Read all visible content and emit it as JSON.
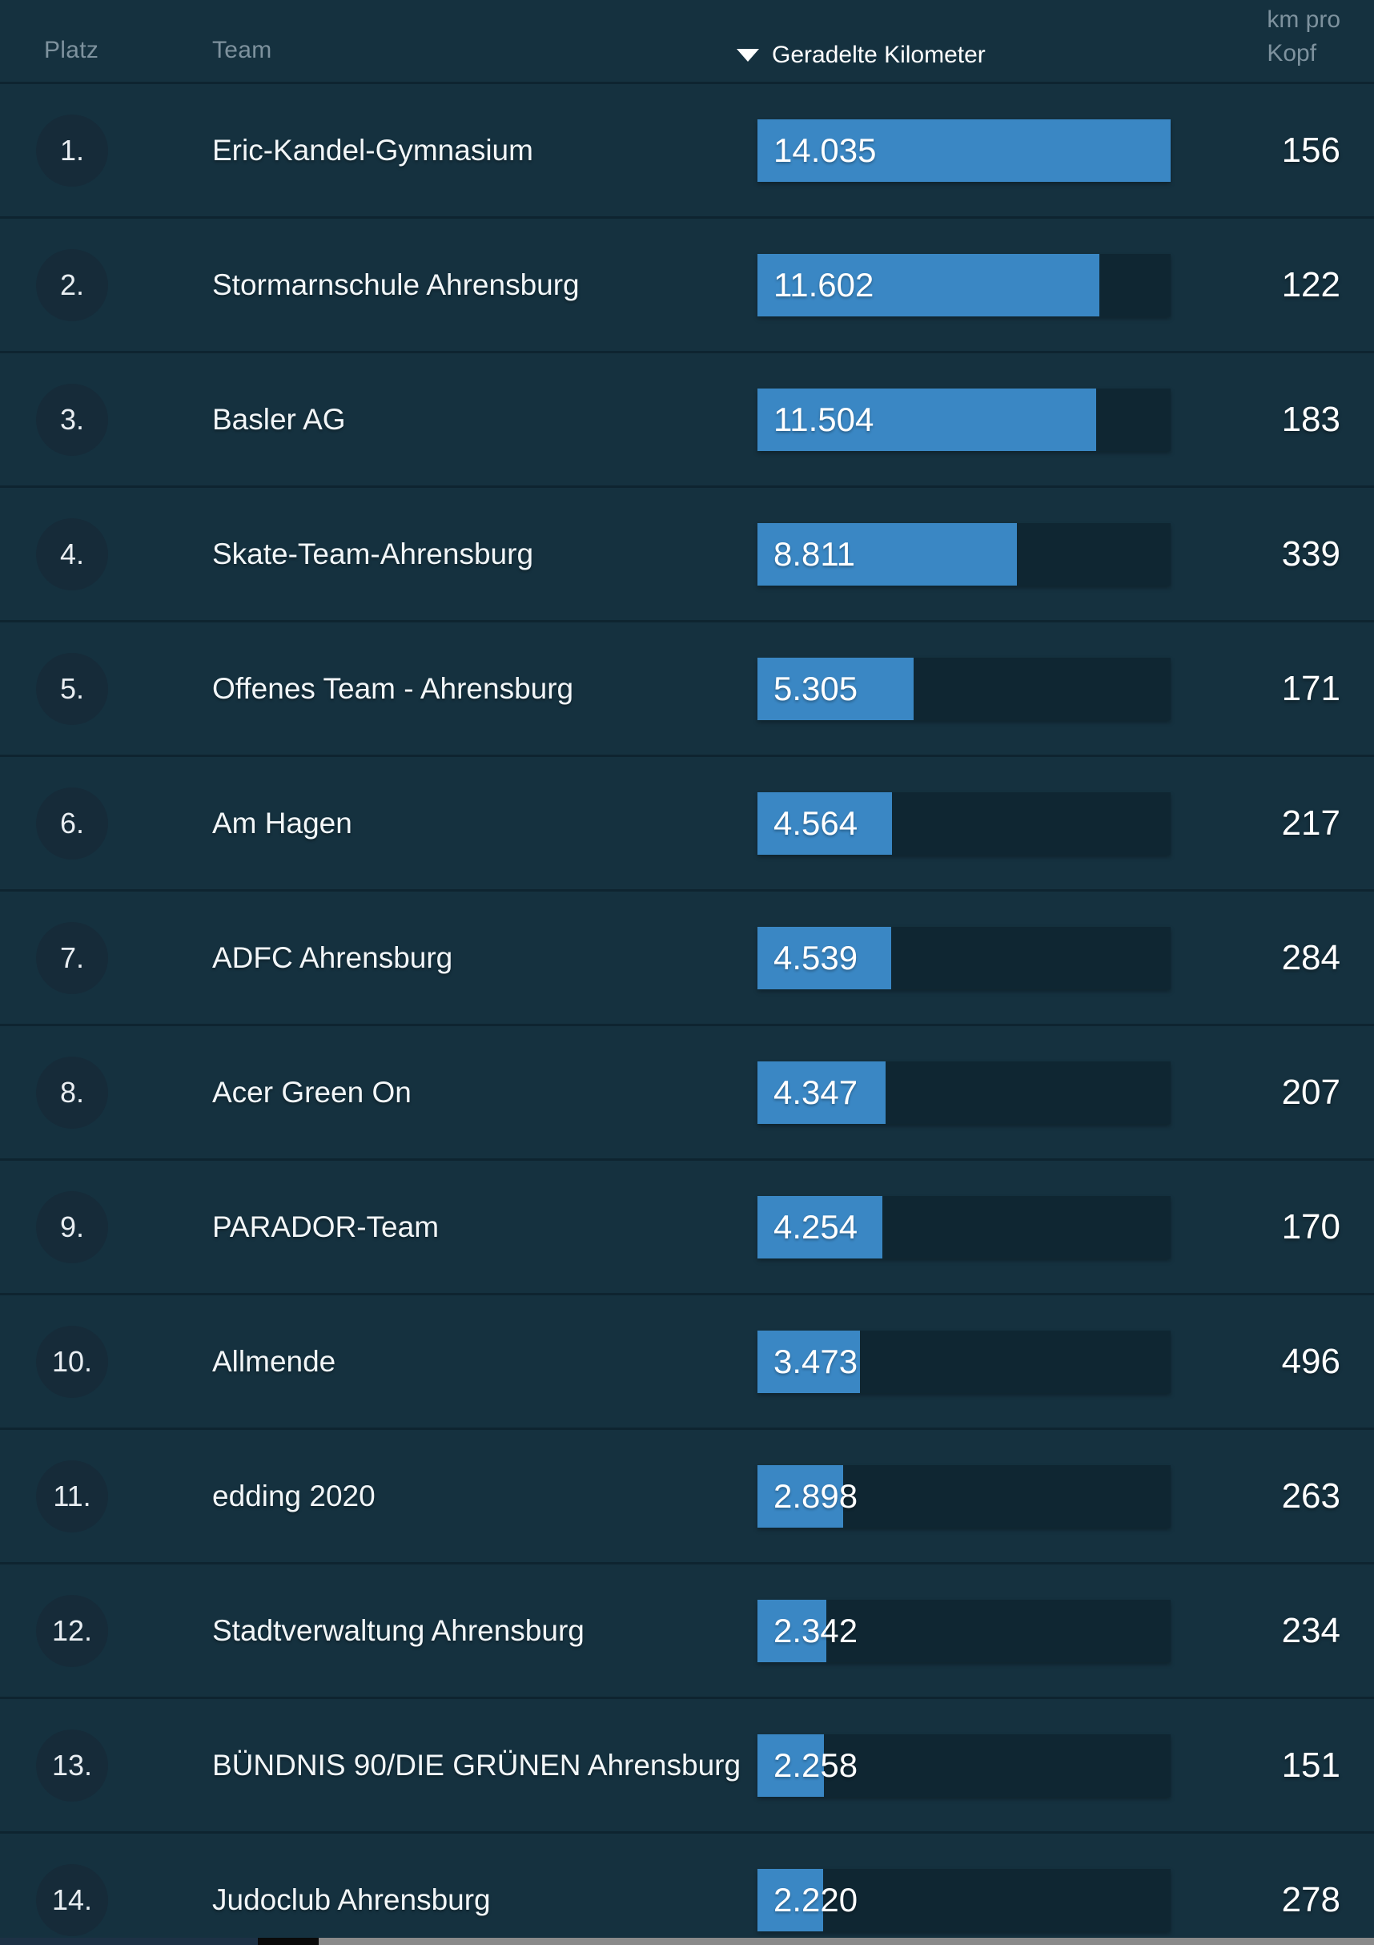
{
  "colors": {
    "background": "#15313F",
    "separator": "#0E2430",
    "rank_circle": "#162B39",
    "bar_track": "#0F2632",
    "bar_fill": "#3A87C4",
    "text_primary": "#F2F6F8",
    "text_muted": "#7E929E",
    "scrollbar_navy": "#1D3145",
    "scrollbar_black": "#0A0A0A",
    "scrollbar_gray": "#8A8A8A"
  },
  "header": {
    "platz": "Platz",
    "team": "Team",
    "sort_label": "Geradelte Kilometer",
    "sort_icon": "caret-down-icon",
    "km_pro_kopf_line1": "km pro",
    "km_pro_kopf_line2": "Kopf"
  },
  "max_km": 14035,
  "rows": [
    {
      "rank": "1.",
      "team": "Eric-Kandel-Gymnasium",
      "km": 14035,
      "km_display": "14.035",
      "per_capita": "156"
    },
    {
      "rank": "2.",
      "team": "Stormarnschule Ahrensburg",
      "km": 11602,
      "km_display": "11.602",
      "per_capita": "122"
    },
    {
      "rank": "3.",
      "team": "Basler AG",
      "km": 11504,
      "km_display": "11.504",
      "per_capita": "183"
    },
    {
      "rank": "4.",
      "team": "Skate-Team-Ahrensburg",
      "km": 8811,
      "km_display": "8.811",
      "per_capita": "339"
    },
    {
      "rank": "5.",
      "team": "Offenes Team - Ahrensburg",
      "km": 5305,
      "km_display": "5.305",
      "per_capita": "171"
    },
    {
      "rank": "6.",
      "team": "Am Hagen",
      "km": 4564,
      "km_display": "4.564",
      "per_capita": "217"
    },
    {
      "rank": "7.",
      "team": "ADFC Ahrensburg",
      "km": 4539,
      "km_display": "4.539",
      "per_capita": "284"
    },
    {
      "rank": "8.",
      "team": "Acer Green On",
      "km": 4347,
      "km_display": "4.347",
      "per_capita": "207"
    },
    {
      "rank": "9.",
      "team": "PARADOR-Team",
      "km": 4254,
      "km_display": "4.254",
      "per_capita": "170"
    },
    {
      "rank": "10.",
      "team": "Allmende",
      "km": 3473,
      "km_display": "3.473",
      "per_capita": "496"
    },
    {
      "rank": "11.",
      "team": "edding 2020",
      "km": 2898,
      "km_display": "2.898",
      "per_capita": "263"
    },
    {
      "rank": "12.",
      "team": "Stadtverwaltung Ahrensburg",
      "km": 2342,
      "km_display": "2.342",
      "per_capita": "234"
    },
    {
      "rank": "13.",
      "team": "BÜNDNIS 90/DIE GRÜNEN Ahrensburg",
      "km": 2258,
      "km_display": "2.258",
      "per_capita": "151"
    },
    {
      "rank": "14.",
      "team": "Judoclub Ahrensburg",
      "km": 2220,
      "km_display": "2.220",
      "per_capita": "278"
    }
  ]
}
